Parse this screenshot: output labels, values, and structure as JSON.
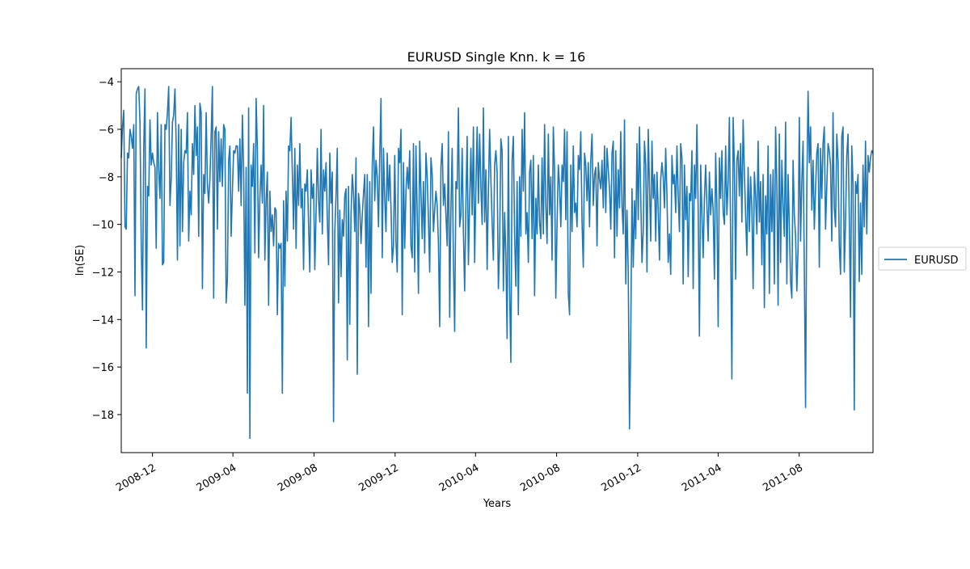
{
  "chart_data": {
    "type": "line",
    "title": "EURUSD Single Knn. k = 16",
    "xlabel": "Years",
    "ylabel": "ln(SE)",
    "x_range": [
      "2008-10-15",
      "2011-11-20"
    ],
    "ylim": [
      -19.6,
      -3.45
    ],
    "y_ticks": [
      -18,
      -16,
      -14,
      -12,
      -10,
      -8,
      -6,
      -4
    ],
    "x_ticks": [
      "2008-12",
      "2009-04",
      "2009-08",
      "2009-12",
      "2010-04",
      "2010-08",
      "2010-12",
      "2011-04",
      "2011-08"
    ],
    "grid": false,
    "legend_position": "right",
    "line_color": "#1f77b4",
    "series": [
      {
        "name": "EURUSD",
        "start_date": "2008-10-15",
        "end_date": "2011-11-20",
        "values": [
          -7.2,
          -5.9,
          -5.2,
          -10.1,
          -10.2,
          -7.0,
          -7.2,
          -6.0,
          -6.3,
          -6.8,
          -5.8,
          -13.0,
          -4.5,
          -4.3,
          -4.2,
          -5.7,
          -10.8,
          -13.6,
          -6.8,
          -4.3,
          -15.2,
          -8.4,
          -8.8,
          -5.6,
          -7.5,
          -7.0,
          -7.4,
          -7.6,
          -11.0,
          -5.3,
          -7.7,
          -8.9,
          -5.8,
          -11.7,
          -11.6,
          -5.8,
          -6.0,
          -5.3,
          -4.2,
          -9.2,
          -8.1,
          -5.7,
          -5.4,
          -4.3,
          -6.6,
          -11.5,
          -5.8,
          -10.9,
          -6.0,
          -10.3,
          -7.4,
          -6.9,
          -7.0,
          -5.3,
          -10.7,
          -8.6,
          -9.6,
          -6.6,
          -7.9,
          -5.0,
          -7.1,
          -5.9,
          -10.5,
          -4.9,
          -5.3,
          -12.7,
          -7.9,
          -8.7,
          -5.3,
          -8.3,
          -9.1,
          -8.1,
          -6.3,
          -4.2,
          -13.1,
          -6.1,
          -5.9,
          -10.2,
          -6.1,
          -8.2,
          -6.4,
          -8.4,
          -5.8,
          -6.0,
          -13.3,
          -12.3,
          -7.3,
          -6.7,
          -10.5,
          -8.6,
          -6.9,
          -7.0,
          -6.7,
          -6.7,
          -8.6,
          -6.4,
          -9.2,
          -5.4,
          -7.7,
          -13.4,
          -7.6,
          -17.1,
          -5.1,
          -19.0,
          -7.5,
          -8.4,
          -6.6,
          -11.2,
          -4.7,
          -6.8,
          -11.4,
          -8.9,
          -7.5,
          -9.1,
          -5.0,
          -11.5,
          -9.0,
          -7.8,
          -13.4,
          -8.6,
          -10.3,
          -9.6,
          -10.9,
          -9.3,
          -9.4,
          -13.8,
          -10.8,
          -11.0,
          -10.8,
          -17.1,
          -9.0,
          -12.6,
          -8.6,
          -10.7,
          -6.7,
          -6.9,
          -5.5,
          -7.8,
          -10.2,
          -6.8,
          -11.0,
          -7.5,
          -9.2,
          -6.6,
          -9.3,
          -8.5,
          -11.9,
          -8.3,
          -8.6,
          -7.7,
          -10.0,
          -12.0,
          -7.7,
          -8.9,
          -8.3,
          -11.9,
          -9.5,
          -6.8,
          -9.0,
          -9.9,
          -6.0,
          -10.4,
          -7.7,
          -8.6,
          -7.4,
          -9.7,
          -11.7,
          -7.0,
          -9.1,
          -7.8,
          -18.3,
          -10.3,
          -8.8,
          -6.8,
          -13.3,
          -9.4,
          -12.2,
          -9.8,
          -10.5,
          -8.8,
          -8.5,
          -15.7,
          -8.4,
          -14.2,
          -9.6,
          -7.9,
          -8.7,
          -10.3,
          -7.2,
          -16.3,
          -8.7,
          -9.3,
          -10.8,
          -9.6,
          -8.7,
          -7.9,
          -11.8,
          -7.9,
          -14.3,
          -8.2,
          -12.9,
          -7.6,
          -5.9,
          -9.0,
          -7.3,
          -8.0,
          -10.1,
          -7.1,
          -4.7,
          -11.4,
          -6.8,
          -8.9,
          -10.3,
          -7.0,
          -9.0,
          -7.5,
          -9.3,
          -11.6,
          -10.9,
          -7.1,
          -10.7,
          -12.0,
          -6.8,
          -7.4,
          -6.0,
          -13.8,
          -7.4,
          -11.0,
          -8.6,
          -7.6,
          -8.5,
          -6.9,
          -10.9,
          -11.4,
          -6.6,
          -12.0,
          -6.7,
          -9.5,
          -12.9,
          -6.5,
          -8.6,
          -10.6,
          -8.2,
          -11.2,
          -7.0,
          -8.0,
          -9.8,
          -12.0,
          -7.2,
          -7.9,
          -10.3,
          -9.4,
          -8.6,
          -9.2,
          -10.8,
          -14.3,
          -7.6,
          -6.6,
          -9.2,
          -8.3,
          -9.6,
          -10.9,
          -6.1,
          -13.9,
          -9.3,
          -6.8,
          -11.6,
          -14.5,
          -8.2,
          -8.5,
          -5.1,
          -10.1,
          -9.6,
          -6.8,
          -10.3,
          -12.8,
          -9.1,
          -6.3,
          -11.7,
          -9.0,
          -6.8,
          -9.6,
          -5.9,
          -11.6,
          -8.4,
          -5.9,
          -9.1,
          -6.2,
          -8.4,
          -10.0,
          -5.1,
          -9.9,
          -7.7,
          -11.9,
          -8.6,
          -6.0,
          -8.1,
          -9.9,
          -11.5,
          -7.5,
          -6.9,
          -7.8,
          -12.7,
          -10.9,
          -6.4,
          -6.9,
          -12.8,
          -9.5,
          -11.3,
          -14.8,
          -6.3,
          -12.8,
          -15.8,
          -7.3,
          -6.3,
          -10.5,
          -12.6,
          -8.2,
          -13.8,
          -8.0,
          -10.5,
          -6.0,
          -8.6,
          -5.3,
          -10.4,
          -9.5,
          -11.6,
          -7.8,
          -7.3,
          -10.6,
          -7.1,
          -13.0,
          -8.9,
          -10.4,
          -7.5,
          -9.9,
          -10.6,
          -7.2,
          -10.4,
          -5.8,
          -9.2,
          -10.8,
          -6.2,
          -9.6,
          -8.0,
          -11.5,
          -5.9,
          -7.7,
          -13.1,
          -10.0,
          -7.5,
          -8.4,
          -10.1,
          -7.5,
          -8.2,
          -6.0,
          -9.8,
          -6.1,
          -12.9,
          -13.8,
          -7.5,
          -10.3,
          -6.7,
          -9.5,
          -9.1,
          -10.1,
          -7.1,
          -7.7,
          -6.1,
          -9.9,
          -11.8,
          -7.0,
          -7.5,
          -9.0,
          -7.4,
          -10.1,
          -7.3,
          -6.2,
          -9.2,
          -7.9,
          -7.6,
          -10.9,
          -7.4,
          -8.1,
          -8.5,
          -7.3,
          -9.3,
          -6.7,
          -9.5,
          -6.8,
          -7.7,
          -8.5,
          -10.2,
          -7.0,
          -6.5,
          -11.4,
          -6.9,
          -10.5,
          -7.7,
          -9.3,
          -6.1,
          -9.2,
          -10.4,
          -5.6,
          -12.5,
          -9.4,
          -12.0,
          -18.6,
          -14.8,
          -8.5,
          -11.8,
          -9.0,
          -10.6,
          -6.6,
          -9.8,
          -5.9,
          -8.8,
          -11.6,
          -10.3,
          -6.5,
          -7.5,
          -12.0,
          -6.0,
          -8.4,
          -10.7,
          -6.5,
          -8.9,
          -7.9,
          -10.7,
          -7.8,
          -9.4,
          -11.5,
          -8.1,
          -7.4,
          -8.0,
          -9.3,
          -6.8,
          -8.8,
          -11.6,
          -10.4,
          -12.1,
          -7.1,
          -8.3,
          -7.9,
          -9.5,
          -6.7,
          -8.8,
          -10.3,
          -6.6,
          -7.2,
          -12.5,
          -7.5,
          -9.8,
          -8.4,
          -12.2,
          -8.7,
          -9.0,
          -6.9,
          -12.7,
          -7.5,
          -8.9,
          -5.8,
          -9.4,
          -14.7,
          -7.5,
          -9.6,
          -11.4,
          -8.9,
          -7.5,
          -9.2,
          -10.7,
          -7.8,
          -9.6,
          -8.5,
          -9.4,
          -12.3,
          -7.0,
          -9.2,
          -14.3,
          -7.2,
          -8.9,
          -6.9,
          -9.5,
          -10.0,
          -6.7,
          -9.6,
          -8.2,
          -5.5,
          -10.6,
          -16.5,
          -5.5,
          -7.5,
          -12.3,
          -7.3,
          -6.9,
          -8.8,
          -6.6,
          -9.9,
          -5.6,
          -7.8,
          -9.6,
          -11.3,
          -7.6,
          -10.3,
          -8.0,
          -9.3,
          -12.7,
          -7.8,
          -8.8,
          -10.4,
          -6.5,
          -9.9,
          -8.2,
          -11.7,
          -7.9,
          -13.5,
          -8.8,
          -10.4,
          -6.7,
          -12.9,
          -7.9,
          -10.3,
          -7.7,
          -12.5,
          -5.9,
          -8.3,
          -13.4,
          -6.2,
          -11.6,
          -7.3,
          -9.2,
          -10.5,
          -5.7,
          -12.5,
          -7.9,
          -10.1,
          -12.4,
          -13.1,
          -7.3,
          -9.6,
          -10.5,
          -12.8,
          -11.0,
          -5.5,
          -10.7,
          -8.2,
          -6.5,
          -11.8,
          -17.7,
          -8.5,
          -4.4,
          -7.4,
          -5.9,
          -9.4,
          -7.3,
          -10.2,
          -8.5,
          -7.0,
          -6.6,
          -11.8,
          -6.8,
          -8.9,
          -6.6,
          -5.9,
          -10.2,
          -8.4,
          -6.6,
          -6.9,
          -7.5,
          -10.7,
          -5.3,
          -9.3,
          -10.1,
          -6.2,
          -7.3,
          -10.9,
          -12.1,
          -6.3,
          -5.9,
          -12.0,
          -9.9,
          -7.1,
          -6.2,
          -9.7,
          -13.9,
          -6.7,
          -8.3,
          -17.8,
          -8.2,
          -8.7,
          -7.9,
          -12.4,
          -9.1,
          -12.1,
          -7.5,
          -10.1,
          -6.5,
          -10.4,
          -7.1,
          -7.8,
          -7.2,
          -6.9,
          -7.0
        ]
      }
    ]
  }
}
